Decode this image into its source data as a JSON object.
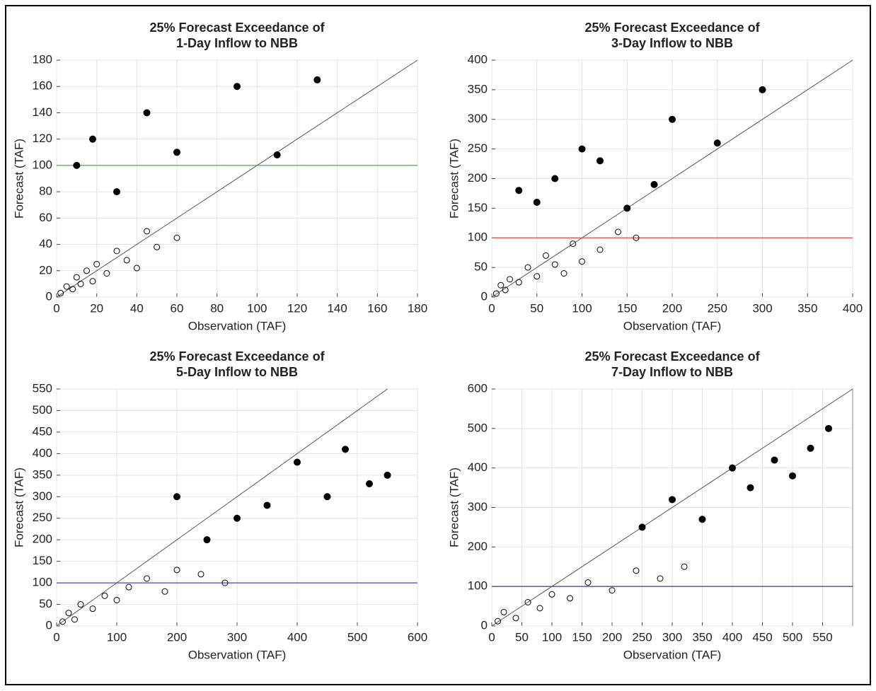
{
  "chart_data": [
    {
      "type": "scatter",
      "title": "25% Forecast Exceedance of",
      "subtitle": "1-Day Inflow to NBB",
      "xlabel": "Observation (TAF)",
      "ylabel": "Forecast (TAF)",
      "xlim": [
        0,
        180
      ],
      "xticks": [
        0,
        20,
        40,
        60,
        80,
        100,
        120,
        140,
        160,
        180
      ],
      "ylim": [
        0,
        180
      ],
      "yticks": [
        0,
        20,
        40,
        60,
        80,
        100,
        120,
        140,
        160,
        180
      ],
      "grid": true,
      "hline": {
        "value": 100,
        "color": "#4caf50"
      },
      "series": [
        {
          "marker": "open",
          "color": "#000000",
          "x": [
            2,
            5,
            8,
            10,
            12,
            15,
            18,
            20,
            25,
            30,
            35,
            40,
            45,
            50,
            60
          ],
          "values": [
            3,
            8,
            6,
            15,
            10,
            20,
            12,
            25,
            18,
            35,
            28,
            22,
            50,
            38,
            45
          ]
        },
        {
          "marker": "filled",
          "color": "#000000",
          "x": [
            10,
            18,
            30,
            45,
            60,
            90,
            110,
            130
          ],
          "values": [
            100,
            120,
            80,
            140,
            110,
            160,
            108,
            165
          ]
        }
      ]
    },
    {
      "type": "scatter",
      "title": "25% Forecast Exceedance of",
      "subtitle": "3-Day Inflow to NBB",
      "xlabel": "Observation (TAF)",
      "ylabel": "Forecast (TAF)",
      "xlim": [
        0,
        400
      ],
      "xticks": [
        0,
        50,
        100,
        150,
        200,
        250,
        300,
        350,
        400
      ],
      "ylim": [
        0,
        400
      ],
      "yticks": [
        0,
        50,
        100,
        150,
        200,
        250,
        300,
        350,
        400
      ],
      "grid": true,
      "hline": {
        "value": 100,
        "color": "#d9534f"
      },
      "series": [
        {
          "marker": "open",
          "color": "#000000",
          "x": [
            5,
            10,
            15,
            20,
            30,
            40,
            50,
            60,
            70,
            80,
            90,
            100,
            120,
            140,
            160
          ],
          "values": [
            6,
            20,
            12,
            30,
            25,
            50,
            35,
            70,
            55,
            40,
            90,
            60,
            80,
            110,
            100
          ]
        },
        {
          "marker": "filled",
          "color": "#000000",
          "x": [
            30,
            50,
            70,
            100,
            120,
            150,
            180,
            200,
            250,
            300
          ],
          "values": [
            180,
            160,
            200,
            250,
            230,
            150,
            190,
            300,
            260,
            350
          ]
        }
      ]
    },
    {
      "type": "scatter",
      "title": "25% Forecast Exceedance of",
      "subtitle": "5-Day Inflow to NBB",
      "xlabel": "Observation (TAF)",
      "ylabel": "Forecast (TAF)",
      "xlim": [
        0,
        600
      ],
      "xticks": [
        0,
        100,
        200,
        300,
        400,
        500,
        600
      ],
      "ylim": [
        0,
        550
      ],
      "yticks": [
        0,
        50,
        100,
        150,
        200,
        250,
        300,
        350,
        400,
        450,
        500,
        550
      ],
      "grid": true,
      "hline": {
        "value": 100,
        "color": "#3f51b5"
      },
      "series": [
        {
          "marker": "open",
          "color": "#000000",
          "x": [
            10,
            20,
            30,
            40,
            60,
            80,
            100,
            120,
            150,
            180,
            200,
            240,
            280
          ],
          "values": [
            10,
            30,
            15,
            50,
            40,
            70,
            60,
            90,
            110,
            80,
            130,
            120,
            100
          ]
        },
        {
          "marker": "filled",
          "color": "#000000",
          "x": [
            200,
            250,
            300,
            350,
            400,
            450,
            480,
            520,
            550
          ],
          "values": [
            300,
            200,
            250,
            280,
            380,
            300,
            410,
            330,
            350
          ]
        }
      ]
    },
    {
      "type": "scatter",
      "title": "25% Forecast Exceedance of",
      "subtitle": "7-Day Inflow to NBB",
      "xlabel": "Observation (TAF)",
      "ylabel": "Forecast (TAF)",
      "xlim": [
        0,
        600
      ],
      "xticks": [
        0,
        50,
        100,
        150,
        200,
        250,
        300,
        350,
        400,
        450,
        500,
        550
      ],
      "ylim": [
        0,
        600
      ],
      "yticks": [
        0,
        100,
        200,
        300,
        400,
        500,
        600
      ],
      "grid": true,
      "hline": {
        "value": 100,
        "color": "#3f51b5"
      },
      "series": [
        {
          "marker": "open",
          "color": "#000000",
          "x": [
            10,
            20,
            40,
            60,
            80,
            100,
            130,
            160,
            200,
            240,
            280,
            320
          ],
          "values": [
            12,
            35,
            20,
            60,
            45,
            80,
            70,
            110,
            90,
            140,
            120,
            150
          ]
        },
        {
          "marker": "filled",
          "color": "#000000",
          "x": [
            250,
            300,
            350,
            400,
            430,
            470,
            500,
            530,
            560
          ],
          "values": [
            250,
            320,
            270,
            400,
            350,
            420,
            380,
            450,
            500
          ]
        }
      ]
    }
  ]
}
